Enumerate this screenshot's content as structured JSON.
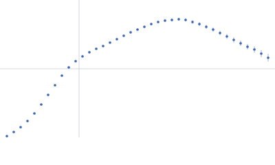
{
  "chart_data": {
    "type": "scatter",
    "xlim": [
      0,
      4
    ],
    "ylim": [
      0,
      2
    ],
    "xgrid": [
      1.15
    ],
    "ygrid": [
      1
    ],
    "color": "#3d67b5",
    "error_color": "#9fb4dc",
    "x": [
      0.1,
      0.2,
      0.3,
      0.4,
      0.5,
      0.6,
      0.7,
      0.8,
      0.9,
      1.0,
      1.1,
      1.2,
      1.3,
      1.4,
      1.5,
      1.6,
      1.7,
      1.8,
      1.9,
      2.0,
      2.1,
      2.2,
      2.3,
      2.4,
      2.5,
      2.6,
      2.7,
      2.8,
      2.9,
      3.0,
      3.1,
      3.2,
      3.3,
      3.4,
      3.5,
      3.6,
      3.7,
      3.8,
      3.9
    ],
    "values": [
      0.02,
      0.08,
      0.15,
      0.24,
      0.35,
      0.48,
      0.62,
      0.76,
      0.9,
      1.02,
      1.11,
      1.18,
      1.24,
      1.29,
      1.33,
      1.38,
      1.43,
      1.48,
      1.53,
      1.57,
      1.61,
      1.65,
      1.68,
      1.7,
      1.71,
      1.72,
      1.71,
      1.68,
      1.65,
      1.61,
      1.57,
      1.52,
      1.47,
      1.42,
      1.37,
      1.32,
      1.28,
      1.22,
      1.16
    ],
    "errors": [
      0.005,
      0.005,
      0.005,
      0.005,
      0.006,
      0.006,
      0.007,
      0.007,
      0.008,
      0.008,
      0.009,
      0.01,
      0.01,
      0.011,
      0.012,
      0.013,
      0.014,
      0.015,
      0.016,
      0.017,
      0.018,
      0.019,
      0.02,
      0.021,
      0.022,
      0.023,
      0.024,
      0.026,
      0.028,
      0.03,
      0.032,
      0.034,
      0.036,
      0.038,
      0.04,
      0.043,
      0.046,
      0.05,
      0.055
    ]
  }
}
